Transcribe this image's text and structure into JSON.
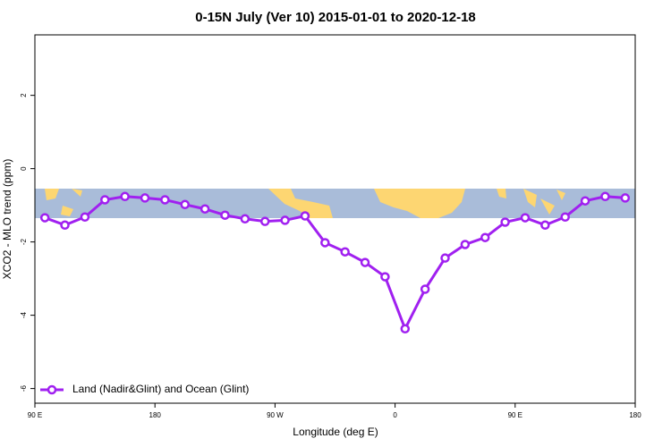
{
  "chart_data": {
    "type": "line",
    "title": "0-15N July (Ver 10)   2015-01-01 to 2020-12-18",
    "xlabel": "Longitude (deg E)",
    "ylabel": "XCO2 - MLO trend (ppm)",
    "x": [
      97.5,
      112.5,
      127.5,
      142.5,
      157.5,
      172.5,
      187.5,
      202.5,
      217.5,
      232.5,
      247.5,
      262.5,
      277.5,
      292.5,
      307.5,
      322.5,
      337.5,
      352.5,
      367.5,
      382.5,
      397.5,
      412.5,
      427.5,
      442.5,
      457.5,
      472.5,
      487.5,
      502.5,
      517.5,
      532.5
    ],
    "series": [
      {
        "name": "Land (Nadir&Glint) and Ocean (Glint)",
        "color": "#a020f0",
        "values": [
          -1.34,
          -1.54,
          -1.32,
          -0.85,
          -0.76,
          -0.8,
          -0.85,
          -0.98,
          -1.1,
          -1.27,
          -1.37,
          -1.44,
          -1.41,
          -1.29,
          -2.02,
          -2.27,
          -2.56,
          -2.95,
          -4.37,
          -3.29,
          -2.44,
          -2.07,
          -1.88,
          -1.46,
          -1.34,
          -1.54,
          -1.32,
          -0.88,
          -0.76,
          -0.8
        ]
      }
    ],
    "xlim": [
      90,
      540
    ],
    "xticks": [
      {
        "value": 90,
        "label": "90 E"
      },
      {
        "value": 180,
        "label": "180"
      },
      {
        "value": 270,
        "label": "90 W"
      },
      {
        "value": 360,
        "label": "0"
      },
      {
        "value": 450,
        "label": "90 E"
      },
      {
        "value": 540,
        "label": "180"
      }
    ],
    "ylim": [
      -6.4,
      3.65
    ],
    "yticks": [
      -6,
      -4,
      -2,
      0,
      2
    ],
    "legend": "bottom-left"
  }
}
